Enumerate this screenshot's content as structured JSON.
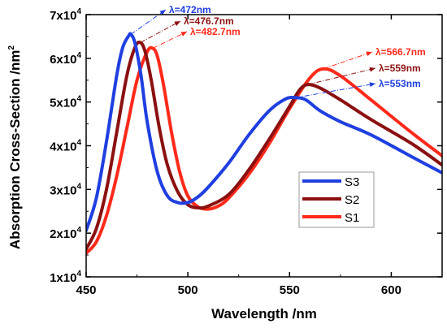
{
  "chart_data": {
    "type": "line",
    "title": "",
    "xlabel": "Wavelength  /nm",
    "ylabel_main": "Absorption Cross-Section  /nm",
    "ylabel_sup": "2",
    "xlim": [
      450,
      625
    ],
    "ylim": [
      10000,
      70000
    ],
    "xticks": [
      450,
      500,
      550,
      600
    ],
    "xtick_labels": [
      "450",
      "500",
      "550",
      "600"
    ],
    "yticks": [
      10000,
      20000,
      30000,
      40000,
      50000,
      60000,
      70000
    ],
    "ytick_labels": [
      {
        "base": "1x10",
        "exp": "4"
      },
      {
        "base": "2x10",
        "exp": "4"
      },
      {
        "base": "3x10",
        "exp": "4"
      },
      {
        "base": "4x10",
        "exp": "4"
      },
      {
        "base": "5x10",
        "exp": "4"
      },
      {
        "base": "6x10",
        "exp": "4"
      },
      {
        "base": "7x10",
        "exp": "4"
      }
    ],
    "grid": false,
    "legend_position": "center-right",
    "series": [
      {
        "name": "S3",
        "color": "#1f3fe0",
        "x": [
          450,
          455,
          460,
          465,
          468,
          471,
          472,
          474,
          477,
          480,
          485,
          490,
          495,
          500,
          505,
          510,
          520,
          530,
          540,
          548,
          553,
          558,
          565,
          575,
          590,
          610,
          625
        ],
        "y": [
          20600,
          28000,
          41000,
          56000,
          62500,
          65200,
          65500,
          63500,
          56000,
          45500,
          34000,
          28500,
          27000,
          27000,
          28300,
          30500,
          36000,
          42500,
          48000,
          50700,
          51000,
          50500,
          48000,
          45500,
          42500,
          37500,
          33800
        ]
      },
      {
        "name": "S2",
        "color": "#8b1010",
        "x": [
          450,
          455,
          460,
          465,
          470,
          474,
          476.7,
          479,
          482,
          486,
          490,
          495,
          500,
          505,
          510,
          520,
          530,
          540,
          550,
          555,
          559,
          565,
          575,
          590,
          610,
          625
        ],
        "y": [
          16400,
          21000,
          30000,
          43000,
          56000,
          62500,
          63600,
          61500,
          55000,
          44000,
          35500,
          29500,
          26500,
          25800,
          26200,
          28800,
          34500,
          41500,
          49000,
          52800,
          54000,
          53200,
          50500,
          46000,
          40500,
          35600
        ]
      },
      {
        "name": "S1",
        "color": "#ff2a1a",
        "x": [
          450,
          455,
          460,
          465,
          470,
          475,
          480,
          482.7,
          485,
          488,
          492,
          496,
          500,
          505,
          510,
          515,
          520,
          530,
          540,
          550,
          560,
          566.7,
          575,
          590,
          610,
          625
        ],
        "y": [
          15400,
          18000,
          24000,
          33000,
          44000,
          55000,
          61500,
          62300,
          60500,
          54000,
          43000,
          34000,
          28500,
          26000,
          25500,
          26200,
          28000,
          33500,
          40500,
          48500,
          55500,
          57600,
          56000,
          50500,
          43000,
          37700
        ]
      }
    ],
    "annotations": [
      {
        "text": "λ=472nm",
        "color": "#1f3fe0",
        "peak_x": 472,
        "peak_y": 65500
      },
      {
        "text": "λ=476.7nm",
        "color": "#8b1010",
        "peak_x": 476.7,
        "peak_y": 63600
      },
      {
        "text": "λ=482.7nm",
        "color": "#ff2a1a",
        "peak_x": 482.7,
        "peak_y": 62300
      },
      {
        "text": "λ=566.7nm",
        "color": "#ff2a1a",
        "peak_x": 566.7,
        "peak_y": 57600
      },
      {
        "text": "λ=559nm",
        "color": "#8b1010",
        "peak_x": 559,
        "peak_y": 54000
      },
      {
        "text": "λ=553nm",
        "color": "#1f3fe0",
        "peak_x": 553,
        "peak_y": 51000
      }
    ]
  }
}
